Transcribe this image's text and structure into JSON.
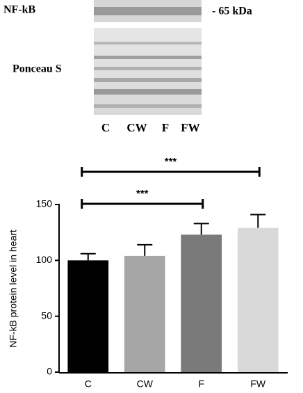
{
  "blot": {
    "band_label": "NF-kB",
    "size_label": "- 65 kDa",
    "stain_label": "Ponceau S",
    "lanes": [
      "C",
      "CW",
      "F",
      "FW"
    ]
  },
  "chart_data": {
    "type": "bar",
    "y_label": "NF-kB protein level in heart",
    "categories": [
      "C",
      "CW",
      "F",
      "FW"
    ],
    "values": [
      100,
      104,
      123,
      129
    ],
    "errors": [
      6,
      10,
      10,
      12
    ],
    "colors": [
      "#000000",
      "#a6a6a6",
      "#7a7a7a",
      "#d9d9d9"
    ],
    "ylim": [
      0,
      150
    ],
    "yticks": [
      0,
      50,
      100,
      150
    ],
    "annotations": [
      {
        "text": "***",
        "between": [
          "C",
          "FW"
        ]
      },
      {
        "text": "***",
        "between": [
          "C",
          "F"
        ]
      }
    ]
  }
}
